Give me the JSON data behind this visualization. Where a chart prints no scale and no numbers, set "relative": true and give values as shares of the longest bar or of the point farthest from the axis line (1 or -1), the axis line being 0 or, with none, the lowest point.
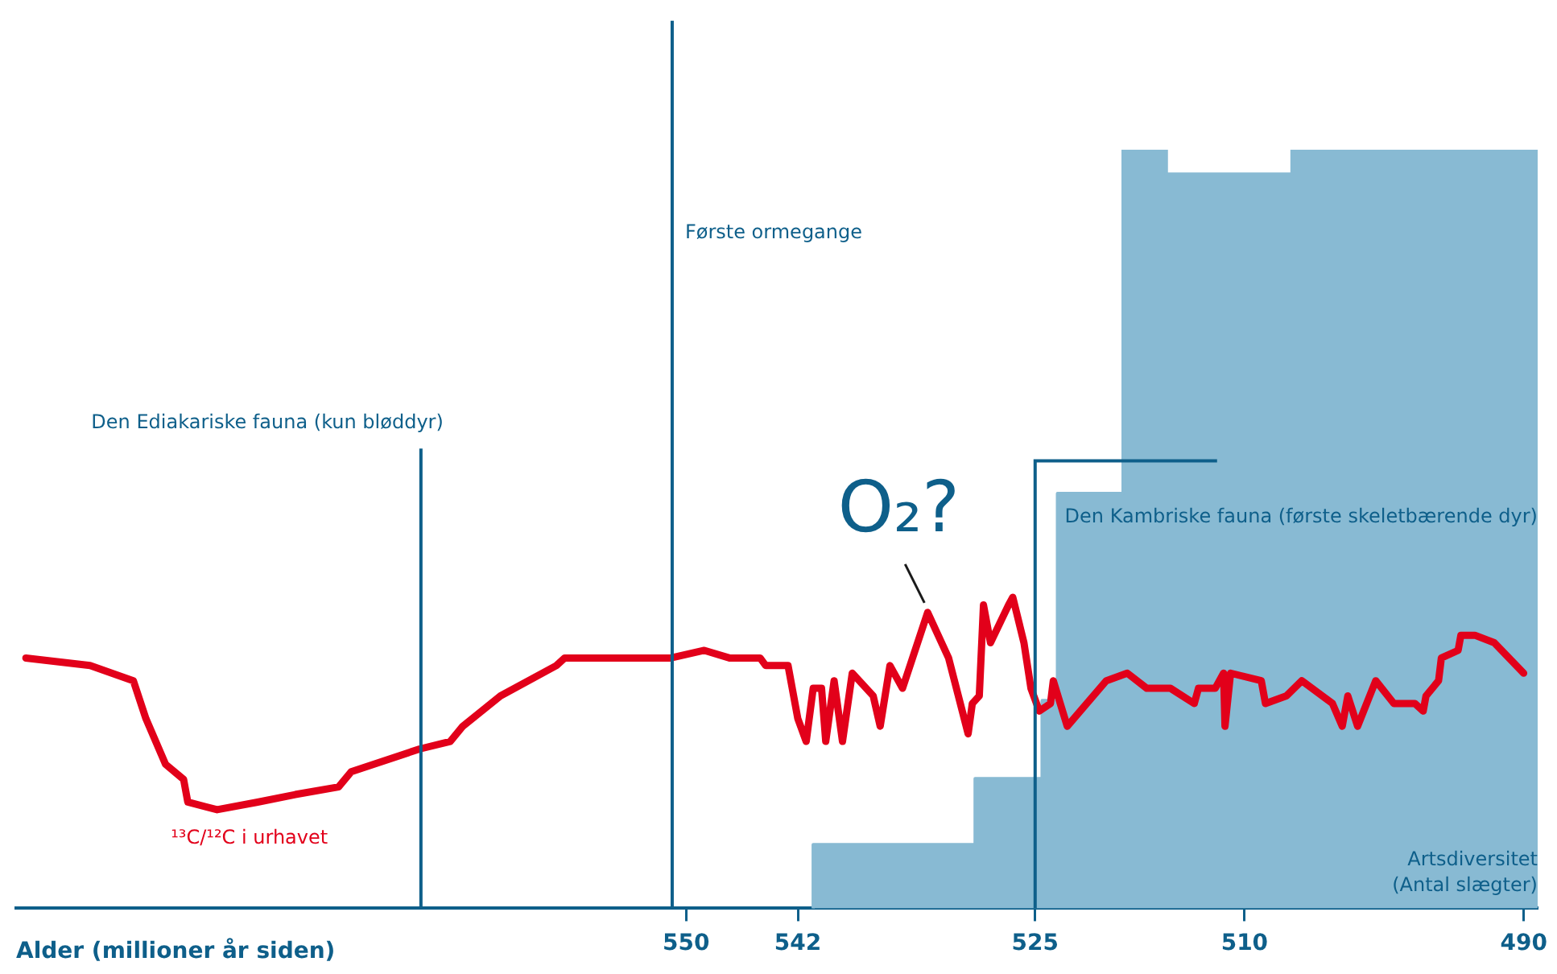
{
  "chart_data": {
    "type": "line",
    "relative": true,
    "xlabel": "Alder (millioner år siden)",
    "xlim": [
      598,
      489
    ],
    "xticks": [
      550,
      542,
      525,
      510,
      490
    ],
    "grid": false,
    "legend": false,
    "annotations": [
      {
        "text": "O₂?",
        "x": 532.7,
        "y": 0.39
      }
    ],
    "ref_lines": [
      {
        "axis": "x",
        "value": 569,
        "label": "Den Ediakariske fauna (kun bløddyr)",
        "color": "#0e5f8a"
      },
      {
        "axis": "x",
        "value": 551,
        "label": "Første ormegange",
        "color": "#0e5f8a"
      },
      {
        "axis": "x",
        "value": 525,
        "label": "Den Kambriske fauna (første skeletbærende dyr)",
        "color": "#0e5f8a"
      }
    ],
    "series": [
      {
        "name": "Artsdiversitet (Antal slægter)",
        "type": "area",
        "color": "#88bad3",
        "x": [
          540.9,
          540.9,
          529.3,
          529.3,
          524.5,
          524.5,
          523.4,
          523.4,
          518.7,
          518.7,
          515.6,
          515.6,
          506.6,
          506.6,
          489.0
        ],
        "values": [
          0,
          0.084,
          0.084,
          0.171,
          0.171,
          0.274,
          0.274,
          0.547,
          0.547,
          1,
          1,
          0.968,
          0.968,
          1,
          1
        ]
      },
      {
        "name": "¹³C/¹²C i urhavet",
        "color": "#e2001a",
        "x": [
          597.3,
          592.7,
          589.6,
          588.7,
          587.3,
          586.0,
          585.7,
          583.6,
          580.7,
          578.0,
          574.9,
          574.0,
          569.1,
          566.9,
          566.0,
          563.3,
          559.3,
          558.7,
          556.7,
          551.1,
          548.7,
          546.9,
          544.7,
          544.3,
          542.7,
          542.0,
          541.4,
          540.9,
          540.3,
          540.0,
          539.4,
          538.8,
          538.1,
          536.6,
          536.1,
          535.4,
          534.5,
          532.7,
          531.2,
          529.8,
          529.5,
          529.0,
          528.7,
          528.2,
          526.9,
          526.6,
          525.8,
          525.3,
          524.7,
          523.9,
          523.7,
          522.7,
          519.9,
          518.4,
          517.0,
          515.3,
          513.6,
          513.3,
          512.1,
          511.5,
          511.4,
          511.0,
          508.8,
          508.5,
          507.0,
          505.9,
          503.7,
          503.0,
          502.6,
          501.9,
          500.6,
          499.3,
          497.8,
          497.2,
          497.0,
          496.1,
          495.9,
          494.7,
          494.5,
          493.5,
          492.1,
          490.0
        ],
        "values": [
          0.33,
          0.32,
          0.3,
          0.25,
          0.19,
          0.17,
          0.14,
          0.13,
          0.14,
          0.15,
          0.16,
          0.18,
          0.21,
          0.22,
          0.24,
          0.28,
          0.32,
          0.33,
          0.33,
          0.33,
          0.34,
          0.33,
          0.33,
          0.32,
          0.32,
          0.25,
          0.22,
          0.29,
          0.29,
          0.22,
          0.3,
          0.22,
          0.31,
          0.28,
          0.24,
          0.32,
          0.29,
          0.39,
          0.33,
          0.23,
          0.27,
          0.28,
          0.4,
          0.35,
          0.4,
          0.41,
          0.35,
          0.29,
          0.26,
          0.27,
          0.3,
          0.24,
          0.3,
          0.31,
          0.29,
          0.29,
          0.27,
          0.29,
          0.29,
          0.31,
          0.24,
          0.31,
          0.3,
          0.27,
          0.28,
          0.3,
          0.27,
          0.24,
          0.28,
          0.24,
          0.3,
          0.27,
          0.27,
          0.26,
          0.28,
          0.3,
          0.33,
          0.34,
          0.36,
          0.36,
          0.35,
          0.31
        ]
      }
    ]
  }
}
